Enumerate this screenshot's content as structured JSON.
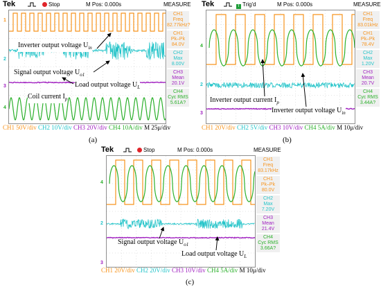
{
  "colors": {
    "ch1": "#f7941d",
    "ch2": "#24c4c9",
    "ch3": "#a020c0",
    "ch4": "#2bb02b",
    "stop": "#e0242a",
    "trig": "#1f9e3a"
  },
  "panel_a": {
    "brand": "Tek",
    "status": "Stop",
    "mpos": "M Pos: 0.000s",
    "measure_title": "MEASURE",
    "measures": [
      {
        "ch": "CH1",
        "label": "Freq",
        "value": "82.77kHz?"
      },
      {
        "ch": "CH1",
        "label": "Pk–Pk",
        "value": "84.0V"
      },
      {
        "ch": "CH2",
        "label": "Max",
        "value": "8.00V"
      },
      {
        "ch": "CH3",
        "label": "Mean",
        "value": "20.1V"
      },
      {
        "ch": "CH4",
        "label": "Cyc RMS",
        "value": "5.61A?"
      }
    ],
    "footer": {
      "ch1": "CH1 50V/div",
      "ch2": "CH2 10V/div",
      "ch3": "CH3 20V/div",
      "ch4": "CH4 10A/div",
      "m": "M 25μ/div"
    },
    "annotations": {
      "inverter": "Inverter output voltage U",
      "inverter_sub": "in",
      "signal": "Signal output voltage U",
      "signal_sub": "o1",
      "load": "Load output voltage U",
      "load_sub": "L",
      "coil": "Coil current I",
      "coil_sub": "p"
    },
    "caption": "(a)"
  },
  "panel_b": {
    "brand": "Tek",
    "status": "Trig'd",
    "status_icon": "T",
    "mpos": "M Pos: 0.000s",
    "measure_title": "MEASURE",
    "measures": [
      {
        "ch": "CH1",
        "label": "Freq",
        "value": "83.01kHz"
      },
      {
        "ch": "CH1",
        "label": "Pk–Pk",
        "value": "78.4V"
      },
      {
        "ch": "CH2",
        "label": "Max",
        "value": "1.20V"
      },
      {
        "ch": "CH3",
        "label": "Mean",
        "value": "20.7V"
      },
      {
        "ch": "CH4",
        "label": "Cyc RMS",
        "value": "3.44A?"
      }
    ],
    "footer": {
      "ch1": "CH1 20V/div",
      "ch2": "CH2 5V/div",
      "ch3": "CH3 10V/div",
      "ch4": "CH4 5A/div",
      "m": "M 10μ/div"
    },
    "annotations": {
      "current": "Inverter output current I",
      "current_sub": "p",
      "voltage": "Inverter output voltage U",
      "voltage_sub": "in"
    },
    "caption": "(b)"
  },
  "panel_c": {
    "brand": "Tek",
    "status": "Stop",
    "mpos": "M Pos: 0.000s",
    "measure_title": "MEASURE",
    "measures": [
      {
        "ch": "CH1",
        "label": "Freq",
        "value": "83.17kHz"
      },
      {
        "ch": "CH1",
        "label": "Pk–Pk",
        "value": "80.0V"
      },
      {
        "ch": "CH2",
        "label": "Max",
        "value": "7.20V"
      },
      {
        "ch": "CH3",
        "label": "Mean",
        "value": "21.4V"
      },
      {
        "ch": "CH4",
        "label": "Cyc RMS",
        "value": "3.66A?"
      }
    ],
    "footer": {
      "ch1": "CH1 20V/div",
      "ch2": "CH2 20V/div",
      "ch3": "CH3 10V/div",
      "ch4": "CH4 5A/div",
      "m": "M 10μ/div"
    },
    "annotations": {
      "signal": "Signal output voltage U",
      "signal_sub": "o1",
      "load": "Load output voltage U",
      "load_sub": "L"
    },
    "caption": "(c)"
  },
  "channel_markers": {
    "ch1": "1",
    "ch2": "2",
    "ch3": "3",
    "ch4": "4"
  }
}
